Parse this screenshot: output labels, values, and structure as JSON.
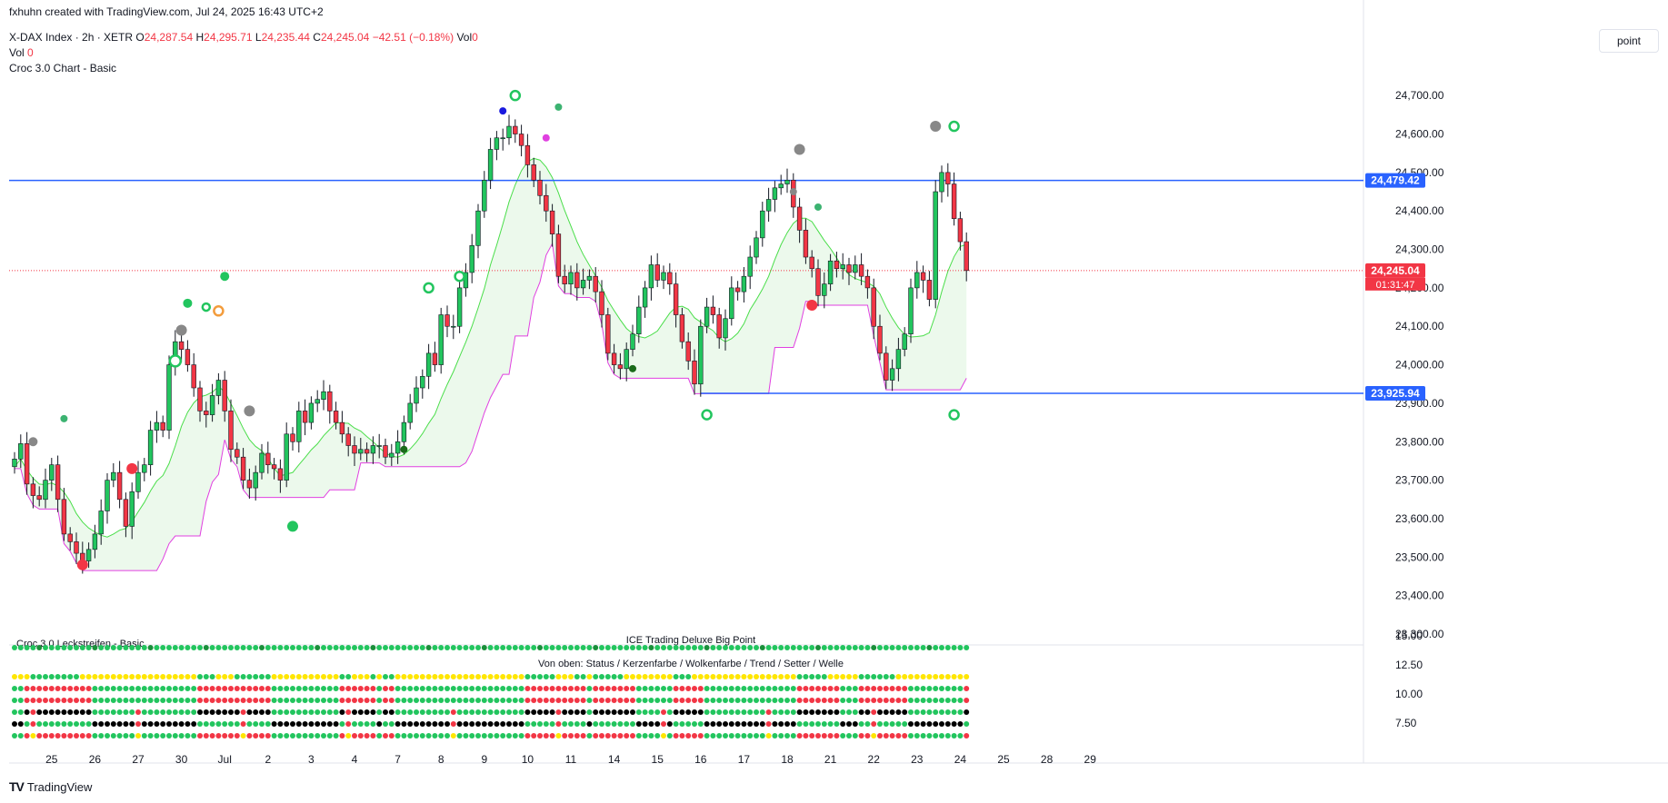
{
  "header": {
    "created_by": "fxhuhn created with TradingView.com, Jul 24, 2025 16:43 UTC+2",
    "symbol": "X-DAX Index · 2h · XETR",
    "ohlc": {
      "o_label": "O",
      "o": "24,287.54",
      "h_label": "H",
      "h": "24,295.71",
      "l_label": "L",
      "l": "24,235.44",
      "c_label": "C",
      "c": "24,245.04",
      "change": "−42.51 (−0.18%)"
    },
    "vol_label": "Vol",
    "vol_value": "0",
    "vol2_label": "Vol",
    "vol2_value": "0",
    "indicator1": "Croc 3.0 Chart - Basic"
  },
  "toolbar": {
    "scale_button": "point"
  },
  "subpane": {
    "title1": "ICE Trading Deluxe Big Point",
    "title2": "Von oben: Status / Kerzenfarbe / Wolkenfarbe / Trend / Setter / Welle",
    "overlap_label": "Croc 3.0 Leckstreifen - Basic",
    "yticks": [
      "15.00",
      "12.50",
      "10.00",
      "7.50"
    ]
  },
  "footer": {
    "logo": "TV",
    "brand": "TradingView"
  },
  "colors": {
    "up": "#22c55e",
    "down": "#f23645",
    "hline": "#2962ff",
    "cloud_line_green": "#4ade4a",
    "cloud_line_magenta": "#e040e0",
    "price_badge": "#f23645"
  },
  "chart_data": {
    "type": "candlestick",
    "ylim": [
      23300,
      24750
    ],
    "yticks": [
      "24,700.00",
      "24,600.00",
      "24,500.00",
      "24,400.00",
      "24,300.00",
      "24,200.00",
      "24,100.00",
      "24,000.00",
      "23,900.00",
      "23,800.00",
      "23,700.00",
      "23,600.00",
      "23,500.00",
      "23,400.00",
      "23,300.00"
    ],
    "xticks": [
      {
        "label": "25",
        "bar": 6
      },
      {
        "label": "26",
        "bar": 13
      },
      {
        "label": "27",
        "bar": 20
      },
      {
        "label": "30",
        "bar": 27
      },
      {
        "label": "Jul",
        "bar": 34
      },
      {
        "label": "2",
        "bar": 41
      },
      {
        "label": "3",
        "bar": 48
      },
      {
        "label": "4",
        "bar": 55
      },
      {
        "label": "7",
        "bar": 62
      },
      {
        "label": "8",
        "bar": 69
      },
      {
        "label": "9",
        "bar": 76
      },
      {
        "label": "10",
        "bar": 83
      },
      {
        "label": "11",
        "bar": 90
      },
      {
        "label": "14",
        "bar": 97
      },
      {
        "label": "15",
        "bar": 104
      },
      {
        "label": "16",
        "bar": 111
      },
      {
        "label": "17",
        "bar": 118
      },
      {
        "label": "18",
        "bar": 125
      },
      {
        "label": "21",
        "bar": 132
      },
      {
        "label": "22",
        "bar": 139
      },
      {
        "label": "23",
        "bar": 146
      },
      {
        "label": "24",
        "bar": 153
      },
      {
        "label": "25",
        "bar": 160
      },
      {
        "label": "28",
        "bar": 167
      },
      {
        "label": "29",
        "bar": 174
      }
    ],
    "price_levels": [
      {
        "value": 24479.42,
        "label": "24,479.42"
      },
      {
        "value": 23925.94,
        "label": "23,925.94"
      }
    ],
    "current_price": {
      "value": 24245.04,
      "label": "24,245.04",
      "countdown": "01:31:47"
    },
    "closes": [
      23755,
      23795,
      23690,
      23660,
      23650,
      23700,
      23740,
      23650,
      23560,
      23540,
      23510,
      23490,
      23520,
      23560,
      23620,
      23700,
      23720,
      23650,
      23580,
      23670,
      23720,
      23740,
      23830,
      23850,
      23830,
      24000,
      24060,
      24040,
      24000,
      23940,
      23880,
      23870,
      23920,
      23960,
      23880,
      23780,
      23760,
      23700,
      23680,
      23720,
      23770,
      23740,
      23730,
      23700,
      23820,
      23800,
      23880,
      23850,
      23900,
      23910,
      23930,
      23880,
      23850,
      23820,
      23790,
      23770,
      23780,
      23770,
      23790,
      23790,
      23760,
      23770,
      23800,
      23850,
      23900,
      23940,
      23970,
      24030,
      24000,
      24130,
      24100,
      24100,
      24200,
      24240,
      24310,
      24400,
      24480,
      24560,
      24590,
      24590,
      24620,
      24600,
      24570,
      24520,
      24480,
      24440,
      24400,
      24340,
      24230,
      24210,
      24240,
      24200,
      24220,
      24230,
      24190,
      24130,
      24030,
      24000,
      23990,
      24040,
      24080,
      24150,
      24200,
      24260,
      24220,
      24240,
      24210,
      24130,
      24060,
      24010,
      23950,
      24100,
      24150,
      24130,
      24070,
      24120,
      24200,
      24190,
      24230,
      24280,
      24330,
      24400,
      24430,
      24460,
      24470,
      24480,
      24410,
      24350,
      24280,
      24250,
      24180,
      24210,
      24270,
      24250,
      24260,
      24240,
      24260,
      24230,
      24200,
      24100,
      24030,
      23960,
      23990,
      24040,
      24080,
      24200,
      24240,
      24220,
      24170,
      24450,
      24500,
      24470,
      24380,
      24320,
      24245
    ],
    "signals_top_labels": [
      "Status",
      "Kerzenfarbe",
      "Wolkenfarbe",
      "Trend",
      "Setter",
      "Welle"
    ]
  }
}
